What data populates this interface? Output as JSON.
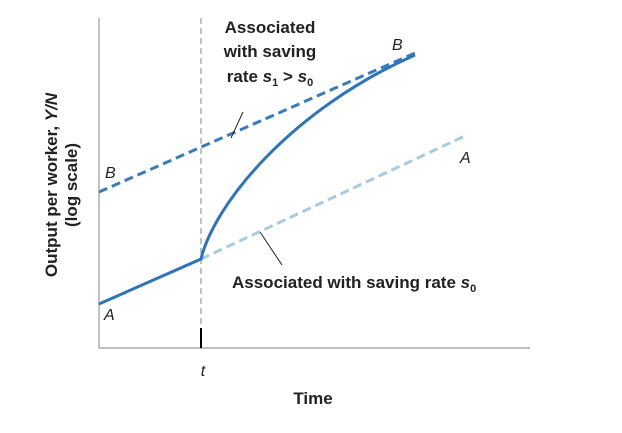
{
  "axes": {
    "y_label": {
      "text": "Output per worker, ",
      "var": "Y/N",
      "note": "(log scale)"
    },
    "x_label": "Time",
    "x_tick": "t"
  },
  "paths": {
    "a_start": "A",
    "b_start": "B",
    "b_end": "B",
    "a_end": "A"
  },
  "annotations": {
    "upper": {
      "line1": "Associated",
      "line2": "with saving",
      "line3": [
        "rate ",
        "s",
        "1",
        " > ",
        "s",
        "0"
      ]
    },
    "lower": [
      "Associated with saving rate ",
      "s",
      "0"
    ]
  }
}
